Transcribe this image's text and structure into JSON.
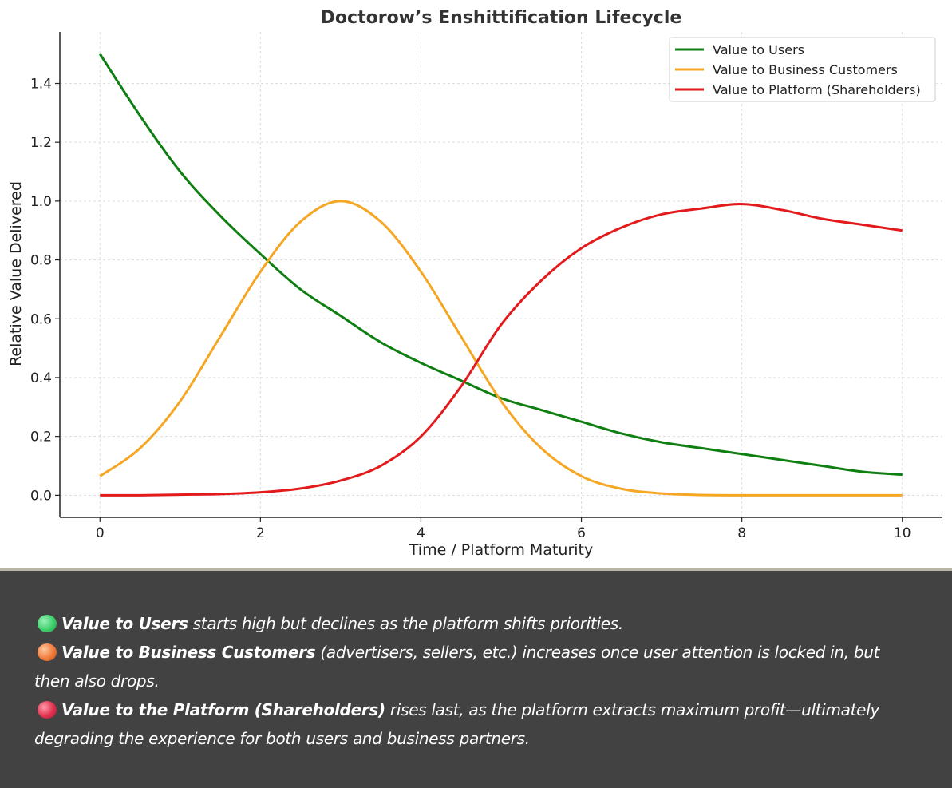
{
  "chart_data": {
    "type": "line",
    "title": "Doctorow’s Enshittification Lifecycle",
    "xlabel": "Time / Platform Maturity",
    "ylabel": "Relative Value Delivered",
    "xlim": [
      -0.5,
      10.5
    ],
    "ylim": [
      -0.075,
      1.575
    ],
    "xticks": [
      "0",
      "2",
      "4",
      "6",
      "8",
      "10"
    ],
    "yticks": [
      "0.0",
      "0.2",
      "0.4",
      "0.6",
      "0.8",
      "1.0",
      "1.2",
      "1.4"
    ],
    "grid": true,
    "legend_position": "top-right",
    "x": [
      0,
      0.5,
      1,
      1.5,
      2,
      2.5,
      3,
      3.5,
      4,
      4.5,
      5,
      5.5,
      6,
      6.5,
      7,
      7.5,
      8,
      8.5,
      9,
      9.5,
      10
    ],
    "series": [
      {
        "name": "Value to Users",
        "color": "#0f7f12",
        "values": [
          1.5,
          1.29,
          1.1,
          0.95,
          0.82,
          0.7,
          0.61,
          0.52,
          0.45,
          0.39,
          0.33,
          0.29,
          0.25,
          0.21,
          0.18,
          0.16,
          0.14,
          0.12,
          0.1,
          0.08,
          0.07
        ]
      },
      {
        "name": "Value to Business Customers",
        "color": "#f5a623",
        "values": [
          0.065,
          0.16,
          0.32,
          0.54,
          0.76,
          0.93,
          1.0,
          0.93,
          0.76,
          0.54,
          0.32,
          0.16,
          0.065,
          0.022,
          0.006,
          0.001,
          0.0,
          0.0,
          0.0,
          0.0,
          0.0
        ]
      },
      {
        "name": "Value to Platform (Shareholders)",
        "color": "#e31a1c",
        "values": [
          0.0,
          0.0,
          0.002,
          0.004,
          0.01,
          0.023,
          0.05,
          0.1,
          0.2,
          0.37,
          0.58,
          0.73,
          0.84,
          0.91,
          0.955,
          0.975,
          0.99,
          0.97,
          0.94,
          0.92,
          0.9
        ]
      }
    ]
  },
  "caption": {
    "line1_bold": "Value to Users",
    "line1_rest": " starts high but declines as the platform shifts priorities.",
    "line2_bold": "Value to Business Customers",
    "line2_rest": " (advertisers, sellers, etc.) increases once user attention is locked in, but",
    "line3": "then also drops.",
    "line4_bold": "Value to the Platform (Shareholders)",
    "line4_rest": " rises last, as the platform extracts maximum profit—ultimately",
    "line5": "degrading the experience for both users and business partners.",
    "dot_colors": [
      "#3ecf6a",
      "#f07a3a",
      "#e0304e"
    ]
  }
}
